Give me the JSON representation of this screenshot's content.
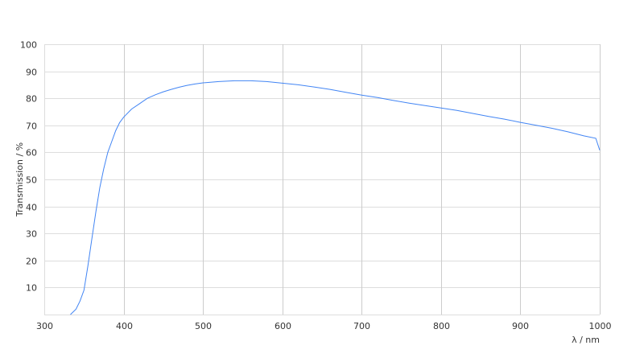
{
  "chart_data": {
    "type": "line",
    "title": "",
    "xlabel": "λ / nm",
    "ylabel": "Transmission / %",
    "xlim": [
      300,
      1000
    ],
    "ylim": [
      0,
      100
    ],
    "xticks": [
      300,
      400,
      500,
      600,
      700,
      800,
      900,
      1000
    ],
    "yticks": [
      10,
      20,
      30,
      40,
      50,
      60,
      70,
      80,
      90,
      100
    ],
    "grid": true,
    "line_color": "#4285f4",
    "grid_color": "#dddddd",
    "series": [
      {
        "x": [
          333,
          340,
          345,
          350,
          355,
          360,
          365,
          370,
          375,
          380,
          385,
          390,
          395,
          400,
          410,
          420,
          430,
          440,
          450,
          460,
          470,
          480,
          490,
          500,
          520,
          540,
          560,
          580,
          600,
          620,
          640,
          660,
          680,
          700,
          720,
          740,
          760,
          780,
          800,
          820,
          840,
          860,
          880,
          900,
          920,
          940,
          960,
          980,
          995,
          1000
        ],
        "y": [
          0,
          2,
          5,
          9,
          18,
          28,
          38,
          47,
          54,
          60,
          64,
          68,
          71,
          73,
          76,
          78,
          80,
          81.3,
          82.4,
          83.3,
          84.1,
          84.8,
          85.3,
          85.7,
          86.2,
          86.5,
          86.5,
          86.2,
          85.6,
          85,
          84.2,
          83.3,
          82.2,
          81.2,
          80.3,
          79.2,
          78.2,
          77.3,
          76.4,
          75.5,
          74.4,
          73.3,
          72.3,
          71.1,
          70,
          68.9,
          67.6,
          66.1,
          65.2,
          60.8
        ]
      }
    ]
  }
}
